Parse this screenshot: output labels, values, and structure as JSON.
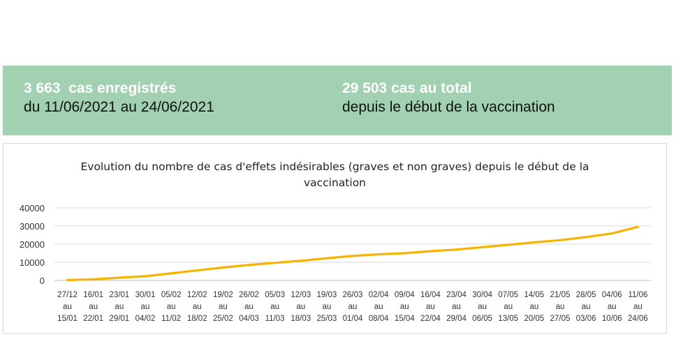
{
  "header": {
    "left": {
      "headline": "3 663  cas enregistrés",
      "subline": "du 11/06/2021 au 24/06/2021"
    },
    "right": {
      "headline": "29 503 cas au total",
      "subline": "depuis le début de la vaccination"
    },
    "banner_color": "#a1d1b0"
  },
  "chart_data": {
    "type": "line",
    "title": "Evolution du nombre de cas d'effets indésirables (graves et non graves) depuis le début de la vaccination",
    "categories": [
      [
        "27/12",
        "au",
        "15/01"
      ],
      [
        "16/01",
        "au",
        "22/01"
      ],
      [
        "23/01",
        "au",
        "29/01"
      ],
      [
        "30/01",
        "au",
        "04/02"
      ],
      [
        "05/02",
        "au",
        "11/02"
      ],
      [
        "12/02",
        "au",
        "18/02"
      ],
      [
        "19/02",
        "au",
        "25/02"
      ],
      [
        "26/02",
        "au",
        "04/03"
      ],
      [
        "05/03",
        "au",
        "11/03"
      ],
      [
        "12/03",
        "au",
        "18/03"
      ],
      [
        "19/03",
        "au",
        "25/03"
      ],
      [
        "26/03",
        "au",
        "01/04"
      ],
      [
        "02/04",
        "au",
        "08/04"
      ],
      [
        "09/04",
        "au",
        "15/04"
      ],
      [
        "16/04",
        "au",
        "22/04"
      ],
      [
        "23/04",
        "au",
        "29/04"
      ],
      [
        "30/04",
        "au",
        "06/05"
      ],
      [
        "07/05",
        "au",
        "13/05"
      ],
      [
        "14/05",
        "au",
        "20/05"
      ],
      [
        "21/05",
        "au",
        "27/05"
      ],
      [
        "28/05",
        "au",
        "03/06"
      ],
      [
        "04/06",
        "au",
        "10/06"
      ],
      [
        "11/06",
        "au",
        "24/06"
      ]
    ],
    "series": [
      {
        "values": [
          200,
          600,
          1500,
          2300,
          3900,
          5500,
          7100,
          8500,
          9700,
          10800,
          12200,
          13500,
          14400,
          15000,
          16100,
          17000,
          18300,
          19600,
          21000,
          22200,
          23900,
          25900,
          29503
        ],
        "color": "#f6b400"
      }
    ],
    "ylim": [
      0,
      40000
    ],
    "yticks": [
      0,
      10000,
      20000,
      30000,
      40000
    ],
    "grid": true
  }
}
